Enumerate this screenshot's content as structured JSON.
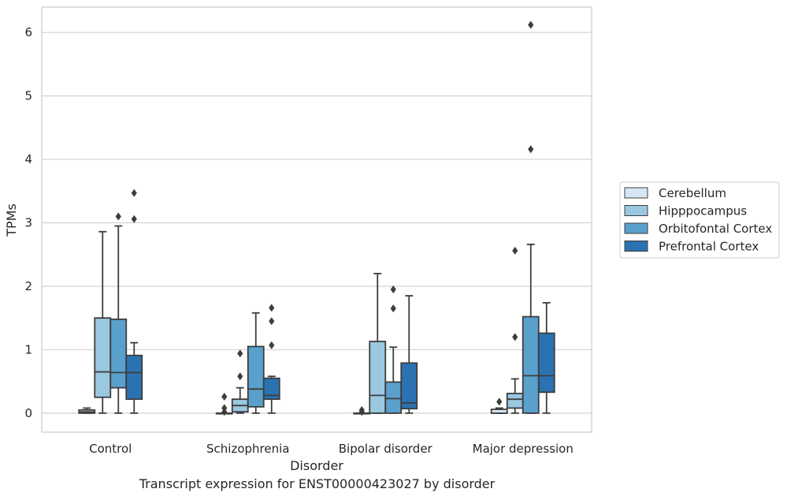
{
  "chart_data": {
    "type": "boxplot",
    "xlabel": "Disorder",
    "ylabel": "TPMs",
    "caption": "Transcript expression for ENST00000423027 by disorder",
    "ylim": [
      -0.3,
      6.4
    ],
    "yticks": [
      0,
      1,
      2,
      3,
      4,
      5,
      6
    ],
    "grid": "horizontal",
    "legend_position": "right",
    "categories": [
      "Control",
      "Schizophrenia",
      "Bipolar disorder",
      "Major depression"
    ],
    "series": [
      {
        "name": "Cerebellum",
        "color": "#d6e6f4",
        "boxes": [
          {
            "whislo": 0.0,
            "q1": 0.0,
            "med": 0.02,
            "q3": 0.05,
            "whishi": 0.08,
            "fliers": []
          },
          {
            "whislo": 0.0,
            "q1": 0.0,
            "med": 0.0,
            "q3": 0.0,
            "whishi": 0.0,
            "fliers": [
              0.02,
              0.08,
              0.26
            ]
          },
          {
            "whislo": 0.0,
            "q1": 0.0,
            "med": 0.0,
            "q3": 0.0,
            "whishi": 0.0,
            "fliers": [
              0.02,
              0.05
            ]
          },
          {
            "whislo": 0.0,
            "q1": 0.0,
            "med": 0.0,
            "q3": 0.06,
            "whishi": 0.08,
            "fliers": [
              0.18
            ]
          }
        ]
      },
      {
        "name": "Hipppocampus",
        "color": "#9ac8e0",
        "boxes": [
          {
            "whislo": 0.0,
            "q1": 0.25,
            "med": 0.65,
            "q3": 1.5,
            "whishi": 2.86,
            "fliers": []
          },
          {
            "whislo": 0.0,
            "q1": 0.02,
            "med": 0.12,
            "q3": 0.22,
            "whishi": 0.4,
            "fliers": [
              0.58,
              0.94
            ]
          },
          {
            "whislo": 0.0,
            "q1": 0.0,
            "med": 0.28,
            "q3": 1.13,
            "whishi": 2.2,
            "fliers": []
          },
          {
            "whislo": 0.0,
            "q1": 0.08,
            "med": 0.22,
            "q3": 0.31,
            "whishi": 0.54,
            "fliers": [
              1.2,
              2.56
            ]
          }
        ]
      },
      {
        "name": "Orbitofontal Cortex",
        "color": "#5aa0cd",
        "boxes": [
          {
            "whislo": 0.0,
            "q1": 0.4,
            "med": 0.64,
            "q3": 1.48,
            "whishi": 2.95,
            "fliers": [
              3.1
            ]
          },
          {
            "whislo": 0.0,
            "q1": 0.1,
            "med": 0.38,
            "q3": 1.05,
            "whishi": 1.58,
            "fliers": []
          },
          {
            "whislo": 0.0,
            "q1": 0.0,
            "med": 0.23,
            "q3": 0.49,
            "whishi": 1.04,
            "fliers": [
              1.65,
              1.95
            ]
          },
          {
            "whislo": 0.0,
            "q1": 0.0,
            "med": 0.59,
            "q3": 1.52,
            "whishi": 2.66,
            "fliers": [
              4.16,
              6.12
            ]
          }
        ]
      },
      {
        "name": "Prefrontal Cortex",
        "color": "#2a72b2",
        "boxes": [
          {
            "whislo": 0.0,
            "q1": 0.22,
            "med": 0.64,
            "q3": 0.91,
            "whishi": 1.11,
            "fliers": [
              3.06,
              3.47
            ]
          },
          {
            "whislo": 0.0,
            "q1": 0.22,
            "med": 0.28,
            "q3": 0.55,
            "whishi": 0.58,
            "fliers": [
              1.07,
              1.45,
              1.66
            ]
          },
          {
            "whislo": 0.0,
            "q1": 0.07,
            "med": 0.16,
            "q3": 0.79,
            "whishi": 1.85,
            "fliers": []
          },
          {
            "whislo": 0.0,
            "q1": 0.33,
            "med": 0.59,
            "q3": 1.26,
            "whishi": 1.74,
            "fliers": []
          }
        ]
      }
    ]
  }
}
